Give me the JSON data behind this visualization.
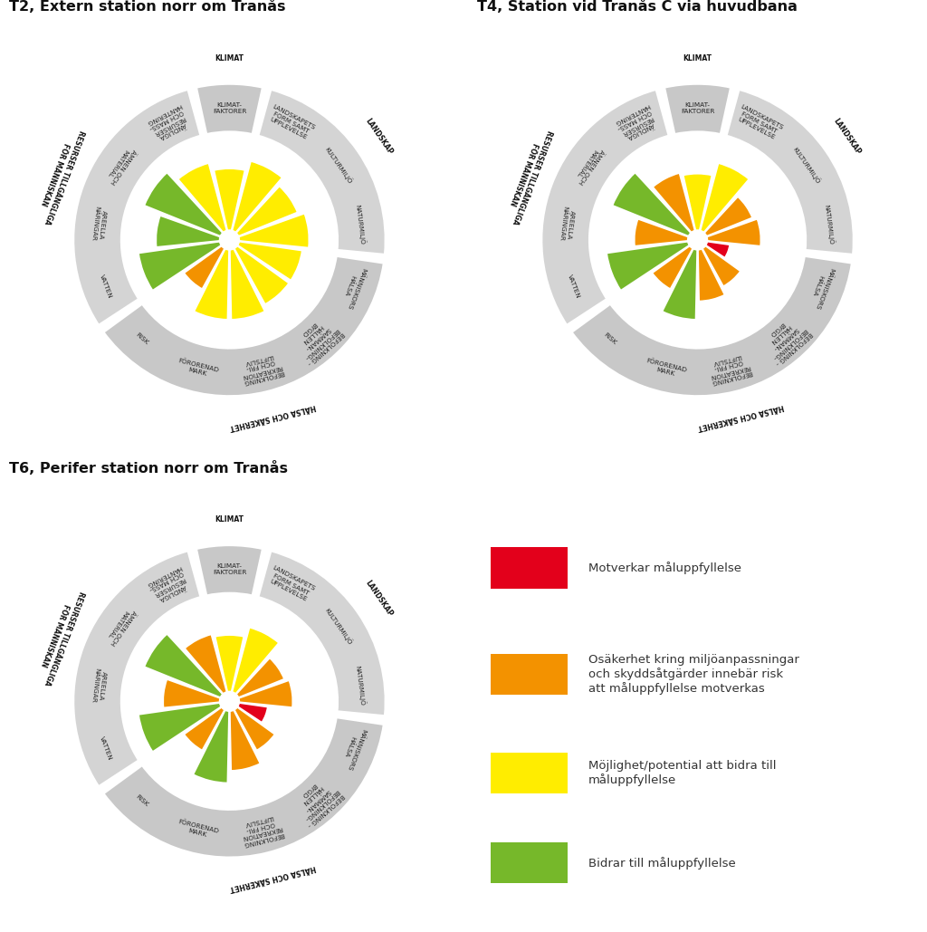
{
  "colors": {
    "red": "#e3001b",
    "orange": "#f39200",
    "yellow": "#ffed00",
    "green": "#76b82a",
    "gray1": "#c8c8c8",
    "gray2": "#d4d4d4",
    "white": "#ffffff",
    "text_dark": "#333333",
    "text_label": "#555555"
  },
  "N": 13,
  "seg_labels": [
    "KLIMAT-\nFAKTORER",
    "LANDSKAPETS\nFORM SAMT\nUPPLEVELSE",
    "KULTURMILJÖ",
    "NATURMILJÖ",
    "MÄNNISKORS\nHÄLSA",
    "BEFOLKNING -\nBEFOLKNING-\nSAMMAN-\nHÄLLEN\nBYGD",
    "BEFOLKNING\nREKREATION\nOCH FRI-\nLUFTSLIV",
    "FÖRORENAD\nMARK",
    "RISK",
    "VATTEN",
    "AREELLA\nNÄRINGAR",
    "ÄMNEN OCH\nMATERIAL",
    "ÄNDLIGA\nRESURSER\nOCH MASS-\nHANTERING"
  ],
  "groups": [
    {
      "name": "KLIMAT",
      "segs": [
        0
      ],
      "color": "#c8c8c8"
    },
    {
      "name": "LANDSKAP",
      "segs": [
        1,
        2,
        3
      ],
      "color": "#d4d4d4"
    },
    {
      "name": "HÄLSA OCH SÄKERHET",
      "segs": [
        4,
        5,
        6,
        7,
        8
      ],
      "color": "#c8c8c8"
    },
    {
      "name": "RESURSER TILLGÄNGLIGA\nFÖR MÄNNISKAN",
      "segs": [
        9,
        10,
        11,
        12
      ],
      "color": "#d4d4d4"
    }
  ],
  "charts": [
    {
      "title": "T2, Extern station norr om Tranås",
      "values": [
        0.7,
        0.8,
        0.72,
        0.78,
        0.72,
        0.72,
        0.78,
        0.78,
        0.55,
        0.9,
        0.72,
        0.9,
        0.78
      ],
      "colors": [
        "yellow",
        "yellow",
        "yellow",
        "yellow",
        "yellow",
        "yellow",
        "yellow",
        "yellow",
        "orange",
        "green",
        "green",
        "green",
        "yellow"
      ]
    },
    {
      "title": "T4, Station vid Tranås C via huvudbana",
      "values": [
        0.65,
        0.78,
        0.58,
        0.62,
        0.32,
        0.52,
        0.6,
        0.78,
        0.55,
        0.9,
        0.62,
        0.9,
        0.68
      ],
      "colors": [
        "yellow",
        "yellow",
        "orange",
        "orange",
        "red",
        "orange",
        "orange",
        "green",
        "orange",
        "green",
        "orange",
        "green",
        "orange"
      ]
    },
    {
      "title": "T6, Perifer station norr om Tranås",
      "values": [
        0.65,
        0.75,
        0.58,
        0.62,
        0.38,
        0.55,
        0.68,
        0.8,
        0.55,
        0.9,
        0.65,
        0.9,
        0.68
      ],
      "colors": [
        "yellow",
        "yellow",
        "orange",
        "orange",
        "red",
        "orange",
        "orange",
        "green",
        "orange",
        "green",
        "orange",
        "green",
        "orange"
      ]
    }
  ],
  "legend": [
    {
      "color": "red",
      "label": "Motverkar måluppfyllelse"
    },
    {
      "color": "orange",
      "label": "Osäkerhet kring miljöanpassningar\noch skyddsåtgärder innebär risk\natt måluppfyllelse motverkas"
    },
    {
      "color": "yellow",
      "label": "Möjlighet/potential att bidra till\nmåluppfyllelse"
    },
    {
      "color": "green",
      "label": "Bidrar till måluppfyllelse"
    }
  ]
}
